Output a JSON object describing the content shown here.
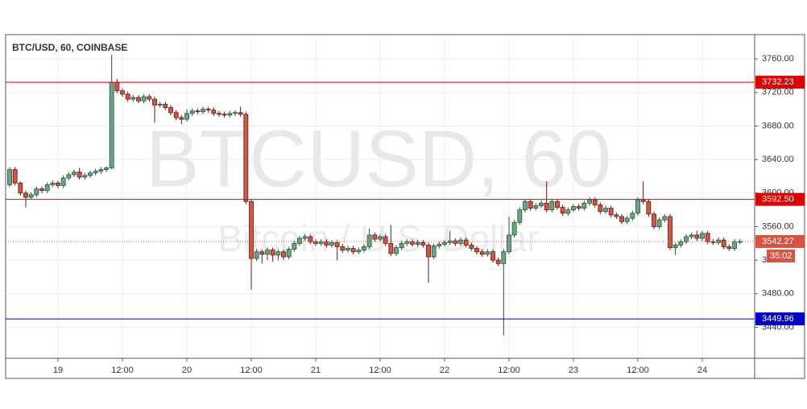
{
  "chart_data": {
    "type": "candlestick",
    "title": "BTC/USD, 60, COINBASE",
    "watermark": "BTCUSD, 60",
    "watermark_subtitle": "Bitcoin / U.S. Dollar",
    "categories": [
      null,
      null,
      null,
      null,
      null,
      null,
      null,
      null,
      null,
      "19",
      null,
      null,
      null,
      null,
      null,
      null,
      null,
      null,
      null,
      null,
      null,
      "12:00",
      null,
      null,
      null,
      null,
      null,
      null,
      null,
      null,
      null,
      null,
      null,
      "20",
      null,
      null,
      null,
      null,
      null,
      null,
      null,
      null,
      null,
      null,
      null,
      "12:00",
      null,
      null,
      null,
      null,
      null,
      null,
      null,
      null,
      null,
      null,
      null,
      "21",
      null,
      null,
      null,
      null,
      null,
      null,
      null,
      null,
      null,
      null,
      null,
      "12:00",
      null,
      null,
      null,
      null,
      null,
      null,
      null,
      null,
      null,
      null,
      null,
      "22",
      null,
      null,
      null,
      null,
      null,
      null,
      null,
      null,
      null,
      null,
      null,
      "12:00",
      null,
      null,
      null,
      null,
      null,
      null,
      null,
      null,
      null,
      null,
      null,
      "23",
      null,
      null,
      null,
      null,
      null,
      null,
      null,
      null,
      null,
      null,
      null,
      "12:00",
      null,
      null,
      null,
      null,
      null,
      null,
      null,
      null,
      null,
      null,
      null,
      "24",
      null,
      null,
      null,
      null,
      null,
      null,
      null
    ],
    "open": [
      3610,
      3628,
      3612,
      3600,
      3595,
      3598,
      3605,
      3603,
      3610,
      3612,
      3609,
      3618,
      3622,
      3625,
      3619,
      3621,
      3624,
      3626,
      3628,
      3630,
      3732,
      3722,
      3718,
      3712,
      3714,
      3710,
      3715,
      3712,
      3705,
      3706,
      3702,
      3696,
      3690,
      3688,
      3695,
      3698,
      3697,
      3700,
      3699,
      3695,
      3694,
      3693,
      3695,
      3696,
      3694,
      3590,
      3522,
      3530,
      3527,
      3532,
      3526,
      3530,
      3524,
      3533,
      3540,
      3546,
      3548,
      3542,
      3540,
      3542,
      3538,
      3541,
      3536,
      3532,
      3534,
      3530,
      3532,
      3536,
      3550,
      3545,
      3548,
      3540,
      3528,
      3535,
      3540,
      3542,
      3539,
      3541,
      3538,
      3524,
      3537,
      3539,
      3541,
      3543,
      3540,
      3544,
      3538,
      3534,
      3530,
      3527,
      3530,
      3520,
      3516,
      3530,
      3550,
      3565,
      3580,
      3590,
      3582,
      3585,
      3588,
      3580,
      3590,
      3583,
      3576,
      3580,
      3584,
      3582,
      3588,
      3592,
      3586,
      3578,
      3582,
      3574,
      3572,
      3566,
      3570,
      3576,
      3592,
      3590,
      3575,
      3560,
      3568,
      3572,
      3535,
      3538,
      3542,
      3548,
      3550,
      3546,
      3552,
      3542,
      3541,
      3544,
      3536,
      3534,
      3542
    ],
    "high": [
      3631,
      3631,
      3614,
      3603,
      3601,
      3608,
      3608,
      3613,
      3615,
      3615,
      3621,
      3625,
      3628,
      3630,
      3624,
      3627,
      3629,
      3631,
      3632,
      3765,
      3736,
      3725,
      3721,
      3717,
      3717,
      3718,
      3718,
      3715,
      3709,
      3709,
      3705,
      3699,
      3693,
      3700,
      3701,
      3701,
      3703,
      3703,
      3702,
      3698,
      3697,
      3698,
      3699,
      3703,
      3697,
      3593,
      3533,
      3533,
      3535,
      3535,
      3533,
      3533,
      3536,
      3543,
      3549,
      3551,
      3551,
      3545,
      3545,
      3545,
      3544,
      3544,
      3539,
      3537,
      3537,
      3535,
      3539,
      3558,
      3553,
      3551,
      3551,
      3562,
      3538,
      3543,
      3545,
      3545,
      3544,
      3544,
      3541,
      3540,
      3542,
      3544,
      3555,
      3546,
      3547,
      3547,
      3541,
      3537,
      3533,
      3533,
      3533,
      3523,
      3533,
      3572,
      3568,
      3583,
      3593,
      3593,
      3588,
      3591,
      3614,
      3593,
      3593,
      3586,
      3583,
      3587,
      3587,
      3591,
      3595,
      3595,
      3589,
      3585,
      3585,
      3577,
      3575,
      3573,
      3579,
      3595,
      3614,
      3593,
      3578,
      3571,
      3575,
      3575,
      3541,
      3545,
      3551,
      3553,
      3555,
      3555,
      3555,
      3545,
      3547,
      3547,
      3539,
      3545,
      3545
    ],
    "low": [
      3607,
      3609,
      3597,
      3583,
      3592,
      3595,
      3600,
      3600,
      3607,
      3606,
      3606,
      3615,
      3619,
      3616,
      3616,
      3618,
      3621,
      3623,
      3625,
      3628,
      3719,
      3715,
      3709,
      3709,
      3707,
      3707,
      3709,
      3684,
      3702,
      3699,
      3693,
      3687,
      3682,
      3685,
      3692,
      3694,
      3694,
      3696,
      3692,
      3691,
      3690,
      3690,
      3692,
      3691,
      3587,
      3485,
      3519,
      3516,
      3520,
      3518,
      3520,
      3520,
      3521,
      3530,
      3537,
      3543,
      3539,
      3537,
      3537,
      3535,
      3535,
      3520,
      3529,
      3529,
      3527,
      3527,
      3529,
      3533,
      3542,
      3542,
      3537,
      3525,
      3525,
      3532,
      3537,
      3536,
      3536,
      3535,
      3493,
      3521,
      3534,
      3536,
      3538,
      3537,
      3537,
      3535,
      3531,
      3527,
      3524,
      3524,
      3517,
      3513,
      3430,
      3527,
      3547,
      3562,
      3577,
      3579,
      3579,
      3582,
      3577,
      3577,
      3580,
      3573,
      3573,
      3577,
      3579,
      3579,
      3585,
      3583,
      3575,
      3575,
      3571,
      3569,
      3563,
      3563,
      3567,
      3573,
      3587,
      3572,
      3557,
      3557,
      3565,
      3532,
      3526,
      3535,
      3539,
      3545,
      3543,
      3543,
      3539,
      3538,
      3538,
      3533,
      3531,
      3531,
      3539
    ],
    "close": [
      3628,
      3612,
      3600,
      3595,
      3598,
      3605,
      3603,
      3610,
      3612,
      3609,
      3618,
      3622,
      3625,
      3619,
      3621,
      3624,
      3626,
      3628,
      3630,
      3732,
      3722,
      3718,
      3712,
      3714,
      3710,
      3715,
      3712,
      3705,
      3706,
      3702,
      3696,
      3690,
      3688,
      3695,
      3698,
      3697,
      3700,
      3699,
      3695,
      3694,
      3693,
      3695,
      3696,
      3694,
      3590,
      3522,
      3530,
      3527,
      3532,
      3526,
      3530,
      3524,
      3533,
      3540,
      3546,
      3548,
      3542,
      3540,
      3542,
      3538,
      3541,
      3536,
      3532,
      3534,
      3530,
      3532,
      3536,
      3550,
      3545,
      3548,
      3540,
      3528,
      3535,
      3540,
      3542,
      3539,
      3541,
      3538,
      3524,
      3537,
      3539,
      3541,
      3543,
      3540,
      3544,
      3538,
      3534,
      3530,
      3527,
      3530,
      3520,
      3516,
      3530,
      3550,
      3565,
      3580,
      3590,
      3582,
      3585,
      3588,
      3580,
      3590,
      3583,
      3576,
      3580,
      3584,
      3582,
      3588,
      3592,
      3586,
      3578,
      3582,
      3574,
      3572,
      3566,
      3570,
      3576,
      3592,
      3590,
      3575,
      3560,
      3568,
      3572,
      3535,
      3538,
      3542,
      3548,
      3550,
      3546,
      3552,
      3542,
      3541,
      3544,
      3536,
      3534,
      3542,
      3542.27
    ],
    "up_color": "#6ba583",
    "down_color": "#d75442",
    "ylim": [
      3403,
      3788
    ],
    "yticks": [
      {
        "value": 3440,
        "label": "3440.00"
      },
      {
        "value": 3480,
        "label": "3480.00"
      },
      {
        "value": 3520,
        "label": "3520.00"
      },
      {
        "value": 3560,
        "label": "3560.00"
      },
      {
        "value": 3600,
        "label": "3600.00"
      },
      {
        "value": 3640,
        "label": "3640.00"
      },
      {
        "value": 3680,
        "label": "3680.00"
      },
      {
        "value": 3720,
        "label": "3720.00"
      },
      {
        "value": 3760,
        "label": "3760.00"
      }
    ],
    "grid": true,
    "levels": [
      {
        "value": 3732.23,
        "label": "3732.23",
        "color": "#e00000"
      },
      {
        "value": 3592.5,
        "label": "3592.50",
        "color": "#e00000"
      },
      {
        "value": 3449.96,
        "label": "3449.96",
        "color": "#0000cc"
      }
    ],
    "last_price": {
      "value": 3542.27,
      "label": "3542.27",
      "color": "#d75442"
    },
    "countdown": "35:02"
  }
}
